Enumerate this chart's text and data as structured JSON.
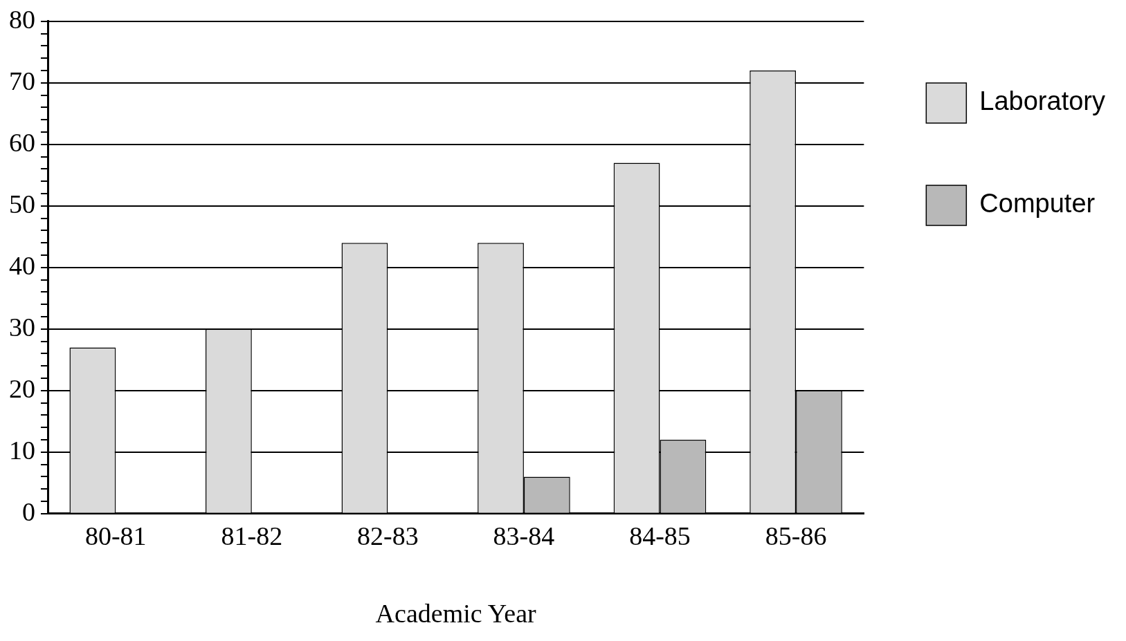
{
  "chart_data": {
    "type": "bar",
    "xlabel": "Academic Year",
    "categories": [
      "80-81",
      "81-82",
      "82-83",
      "83-84",
      "84-85",
      "85-86"
    ],
    "series": [
      {
        "name": "Laboratory",
        "color": "#dadada",
        "values": [
          27,
          30,
          44,
          44,
          57,
          72
        ]
      },
      {
        "name": "Computer",
        "color": "#b8b8b8",
        "values": [
          0,
          0,
          0,
          6,
          12,
          20
        ]
      }
    ],
    "ylim": [
      0,
      80
    ],
    "yticks": [
      0,
      {
        "value": 2,
        "label": null
      },
      {
        "value": 4,
        "label": null
      },
      {
        "value": 6,
        "label": null
      },
      {
        "value": 8,
        "label": null
      },
      10,
      {
        "value": 12,
        "label": null
      },
      {
        "value": 14,
        "label": null
      },
      {
        "value": 16,
        "label": null
      },
      {
        "value": 18,
        "label": null
      },
      20,
      {
        "value": 22,
        "label": null
      },
      {
        "value": 24,
        "label": null
      },
      {
        "value": 26,
        "label": null
      },
      {
        "value": 28,
        "label": null
      },
      30,
      {
        "value": 32,
        "label": null
      },
      {
        "value": 34,
        "label": null
      },
      {
        "value": 36,
        "label": null
      },
      {
        "value": 38,
        "label": null
      },
      40,
      {
        "value": 42,
        "label": null
      },
      {
        "value": 44,
        "label": null
      },
      {
        "value": 46,
        "label": null
      },
      {
        "value": 48,
        "label": null
      },
      50,
      {
        "value": 52,
        "label": null
      },
      {
        "value": 54,
        "label": null
      },
      {
        "value": 56,
        "label": null
      },
      {
        "value": 58,
        "label": null
      },
      60,
      {
        "value": 62,
        "label": null
      },
      {
        "value": 64,
        "label": null
      },
      {
        "value": 66,
        "label": null
      },
      {
        "value": 68,
        "label": null
      },
      70,
      {
        "value": 72,
        "label": null
      },
      {
        "value": 74,
        "label": null
      },
      {
        "value": 76,
        "label": null
      },
      {
        "value": 78,
        "label": null
      },
      80
    ],
    "grid": "y",
    "legend": "top right"
  }
}
